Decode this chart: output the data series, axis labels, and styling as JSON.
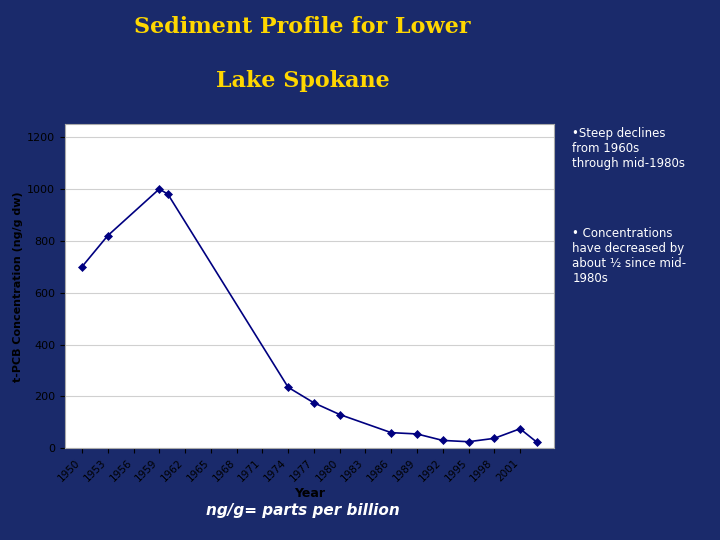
{
  "title_line1": "Sediment Profile for Lower",
  "title_line2": "Lake Spokane",
  "title_color": "#FFD700",
  "background_color": "#1a2a6b",
  "chart_bg": "#ffffff",
  "xlabel": "Year",
  "ylabel": "t-PCB Concentration (ng/g dw)",
  "years": [
    1950,
    1953,
    1959,
    1960,
    1974,
    1977,
    1980,
    1986,
    1989,
    1992,
    1995,
    1998,
    2001,
    2003
  ],
  "values": [
    700,
    820,
    1000,
    980,
    235,
    175,
    130,
    60,
    55,
    30,
    25,
    38,
    75,
    22
  ],
  "line_color": "#000080",
  "marker_color": "#000080",
  "yticks": [
    0,
    200,
    400,
    600,
    800,
    1000,
    1200
  ],
  "xtick_labels": [
    "1950",
    "1953",
    "1956",
    "1959",
    "1962",
    "1965",
    "1968",
    "1971",
    "1974",
    "1977",
    "1980",
    "1983",
    "1986",
    "1989",
    "1992",
    "1995",
    "1998",
    "2001"
  ],
  "xtick_values": [
    1950,
    1953,
    1956,
    1959,
    1962,
    1965,
    1968,
    1971,
    1974,
    1977,
    1980,
    1983,
    1986,
    1989,
    1992,
    1995,
    1998,
    2001
  ],
  "ylim": [
    0,
    1250
  ],
  "xlim": [
    1948,
    2005
  ],
  "note1": "•Steep declines\nfrom 1960s\nthrough mid-1980s",
  "note2": "• Concentrations\nhave decreased by\nabout ½ since mid-\n1980s",
  "footer": "ng/g= parts per billion",
  "font_color_notes": "#ffffff",
  "grid_color": "#d0d0d0"
}
